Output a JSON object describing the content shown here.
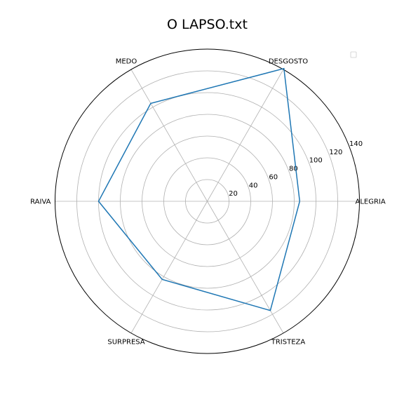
{
  "chart_data": {
    "type": "radar",
    "title": "O LAPSO.txt",
    "categories": [
      "ALEGRIA",
      "DESGOSTO",
      "MEDO",
      "RAIVA",
      "SURPRESA",
      "TRISTEZA"
    ],
    "series": [
      {
        "values": [
          85,
          141,
          104,
          100,
          83,
          116
        ],
        "color": "#1f77b4"
      }
    ],
    "rlim": [
      0,
      140
    ],
    "rticks": [
      20,
      40,
      60,
      80,
      100,
      120,
      140
    ],
    "grid": true,
    "legend": "top-right"
  }
}
